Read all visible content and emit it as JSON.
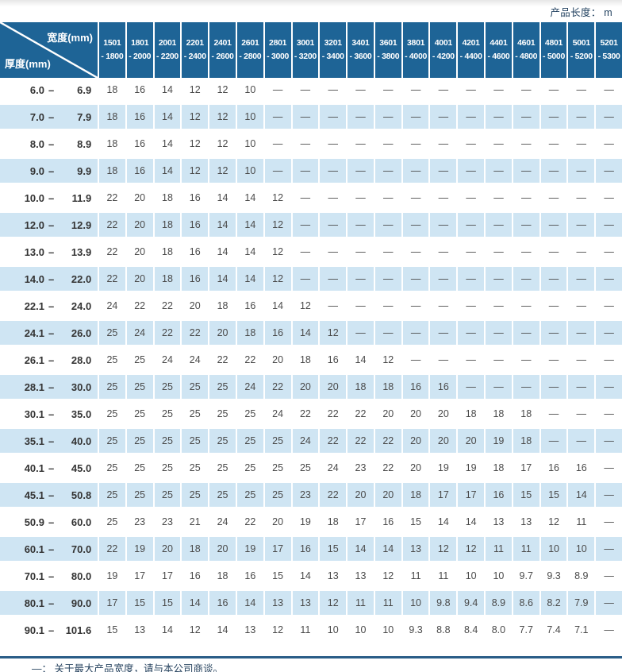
{
  "page": {
    "top_right_label": "产品长度： m",
    "footer_note": "—： 关于最大产品宽度，请与本公司商谈。"
  },
  "colors": {
    "header_blue": "#1e6496",
    "row_band_blue": "#cfe5f3",
    "bottom_rule": "#2a5d87"
  },
  "table": {
    "corner": {
      "top_label": "宽度(mm)",
      "bottom_label": "厚度(mm)"
    },
    "columns": [
      {
        "line1": "1501",
        "line2": "- 1800"
      },
      {
        "line1": "1801",
        "line2": "- 2000"
      },
      {
        "line1": "2001",
        "line2": "- 2200"
      },
      {
        "line1": "2201",
        "line2": "- 2400"
      },
      {
        "line1": "2401",
        "line2": "- 2600"
      },
      {
        "line1": "2601",
        "line2": "- 2800"
      },
      {
        "line1": "2801",
        "line2": "- 3000"
      },
      {
        "line1": "3001",
        "line2": "- 3200"
      },
      {
        "line1": "3201",
        "line2": "- 3400"
      },
      {
        "line1": "3401",
        "line2": "- 3600"
      },
      {
        "line1": "3601",
        "line2": "- 3800"
      },
      {
        "line1": "3801",
        "line2": "- 4000"
      },
      {
        "line1": "4001",
        "line2": "- 4200"
      },
      {
        "line1": "4201",
        "line2": "- 4400"
      },
      {
        "line1": "4401",
        "line2": "- 4600"
      },
      {
        "line1": "4601",
        "line2": "- 4800"
      },
      {
        "line1": "4801",
        "line2": "- 5000"
      },
      {
        "line1": "5001",
        "line2": "- 5200"
      },
      {
        "line1": "5201",
        "line2": "- 5300"
      }
    ],
    "rows": [
      {
        "from": "6.0",
        "to": "6.9",
        "values": [
          "18",
          "16",
          "14",
          "12",
          "12",
          "10",
          "—",
          "—",
          "—",
          "—",
          "—",
          "—",
          "—",
          "—",
          "—",
          "—",
          "—",
          "—",
          "—"
        ]
      },
      {
        "from": "7.0",
        "to": "7.9",
        "values": [
          "18",
          "16",
          "14",
          "12",
          "12",
          "10",
          "—",
          "—",
          "—",
          "—",
          "—",
          "—",
          "—",
          "—",
          "—",
          "—",
          "—",
          "—",
          "—"
        ]
      },
      {
        "from": "8.0",
        "to": "8.9",
        "values": [
          "18",
          "16",
          "14",
          "12",
          "12",
          "10",
          "—",
          "—",
          "—",
          "—",
          "—",
          "—",
          "—",
          "—",
          "—",
          "—",
          "—",
          "—",
          "—"
        ]
      },
      {
        "from": "9.0",
        "to": "9.9",
        "values": [
          "18",
          "16",
          "14",
          "12",
          "12",
          "10",
          "—",
          "—",
          "—",
          "—",
          "—",
          "—",
          "—",
          "—",
          "—",
          "—",
          "—",
          "—",
          "—"
        ]
      },
      {
        "from": "10.0",
        "to": "11.9",
        "values": [
          "22",
          "20",
          "18",
          "16",
          "14",
          "14",
          "12",
          "—",
          "—",
          "—",
          "—",
          "—",
          "—",
          "—",
          "—",
          "—",
          "—",
          "—",
          "—"
        ]
      },
      {
        "from": "12.0",
        "to": "12.9",
        "values": [
          "22",
          "20",
          "18",
          "16",
          "14",
          "14",
          "12",
          "—",
          "—",
          "—",
          "—",
          "—",
          "—",
          "—",
          "—",
          "—",
          "—",
          "—",
          "—"
        ]
      },
      {
        "from": "13.0",
        "to": "13.9",
        "values": [
          "22",
          "20",
          "18",
          "16",
          "14",
          "14",
          "12",
          "—",
          "—",
          "—",
          "—",
          "—",
          "—",
          "—",
          "—",
          "—",
          "—",
          "—",
          "—"
        ]
      },
      {
        "from": "14.0",
        "to": "22.0",
        "values": [
          "22",
          "20",
          "18",
          "16",
          "14",
          "14",
          "12",
          "—",
          "—",
          "—",
          "—",
          "—",
          "—",
          "—",
          "—",
          "—",
          "—",
          "—",
          "—"
        ]
      },
      {
        "from": "22.1",
        "to": "24.0",
        "values": [
          "24",
          "22",
          "22",
          "20",
          "18",
          "16",
          "14",
          "12",
          "—",
          "—",
          "—",
          "—",
          "—",
          "—",
          "—",
          "—",
          "—",
          "—",
          "—"
        ]
      },
      {
        "from": "24.1",
        "to": "26.0",
        "values": [
          "25",
          "24",
          "22",
          "22",
          "20",
          "18",
          "16",
          "14",
          "12",
          "—",
          "—",
          "—",
          "—",
          "—",
          "—",
          "—",
          "—",
          "—",
          "—"
        ]
      },
      {
        "from": "26.1",
        "to": "28.0",
        "values": [
          "25",
          "25",
          "24",
          "24",
          "22",
          "22",
          "20",
          "18",
          "16",
          "14",
          "12",
          "—",
          "—",
          "—",
          "—",
          "—",
          "—",
          "—",
          "—"
        ]
      },
      {
        "from": "28.1",
        "to": "30.0",
        "values": [
          "25",
          "25",
          "25",
          "25",
          "25",
          "24",
          "22",
          "20",
          "20",
          "18",
          "18",
          "16",
          "16",
          "—",
          "—",
          "—",
          "—",
          "—",
          "—"
        ]
      },
      {
        "from": "30.1",
        "to": "35.0",
        "values": [
          "25",
          "25",
          "25",
          "25",
          "25",
          "25",
          "24",
          "22",
          "22",
          "22",
          "20",
          "20",
          "20",
          "18",
          "18",
          "18",
          "—",
          "—",
          "—"
        ]
      },
      {
        "from": "35.1",
        "to": "40.0",
        "values": [
          "25",
          "25",
          "25",
          "25",
          "25",
          "25",
          "25",
          "24",
          "22",
          "22",
          "22",
          "20",
          "20",
          "20",
          "19",
          "18",
          "—",
          "—",
          "—"
        ]
      },
      {
        "from": "40.1",
        "to": "45.0",
        "values": [
          "25",
          "25",
          "25",
          "25",
          "25",
          "25",
          "25",
          "25",
          "24",
          "23",
          "22",
          "20",
          "19",
          "19",
          "18",
          "17",
          "16",
          "16",
          "—"
        ]
      },
      {
        "from": "45.1",
        "to": "50.8",
        "values": [
          "25",
          "25",
          "25",
          "25",
          "25",
          "25",
          "25",
          "23",
          "22",
          "20",
          "20",
          "18",
          "17",
          "17",
          "16",
          "15",
          "15",
          "14",
          "—"
        ]
      },
      {
        "from": "50.9",
        "to": "60.0",
        "values": [
          "25",
          "23",
          "23",
          "21",
          "24",
          "22",
          "20",
          "19",
          "18",
          "17",
          "16",
          "15",
          "14",
          "14",
          "13",
          "13",
          "12",
          "11",
          "—"
        ]
      },
      {
        "from": "60.1",
        "to": "70.0",
        "values": [
          "22",
          "19",
          "20",
          "18",
          "20",
          "19",
          "17",
          "16",
          "15",
          "14",
          "14",
          "13",
          "12",
          "12",
          "11",
          "11",
          "10",
          "10",
          "—"
        ]
      },
      {
        "from": "70.1",
        "to": "80.0",
        "values": [
          "19",
          "17",
          "17",
          "16",
          "18",
          "16",
          "15",
          "14",
          "13",
          "13",
          "12",
          "11",
          "11",
          "10",
          "10",
          "9.7",
          "9.3",
          "8.9",
          "—"
        ]
      },
      {
        "from": "80.1",
        "to": "90.0",
        "values": [
          "17",
          "15",
          "15",
          "14",
          "16",
          "14",
          "13",
          "13",
          "12",
          "11",
          "11",
          "10",
          "9.8",
          "9.4",
          "8.9",
          "8.6",
          "8.2",
          "7.9",
          "—"
        ]
      },
      {
        "from": "90.1",
        "to": "101.6",
        "values": [
          "15",
          "13",
          "14",
          "12",
          "14",
          "13",
          "12",
          "11",
          "10",
          "10",
          "10",
          "9.3",
          "8.8",
          "8.4",
          "8.0",
          "7.7",
          "7.4",
          "7.1",
          "—"
        ]
      }
    ]
  }
}
